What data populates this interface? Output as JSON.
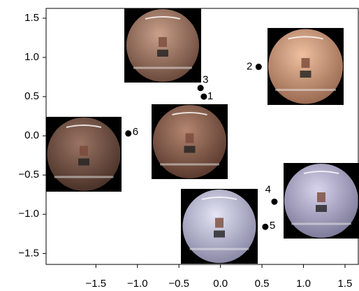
{
  "chart_data": {
    "type": "scatter",
    "series": [
      {
        "color": "#000000",
        "x": [
          -0.2,
          0.46,
          -0.24,
          0.65,
          0.54,
          -1.11
        ],
        "values": [
          0.5,
          0.88,
          0.61,
          -0.84,
          -1.16,
          0.03
        ],
        "labels": [
          "1",
          "2",
          "3",
          "4",
          "5",
          "6"
        ]
      }
    ],
    "xlim": [
      -2.1,
      1.66
    ],
    "ylim": [
      -1.64,
      1.625
    ],
    "xticks": [
      {
        "value": -1.5,
        "label": "−1.5"
      },
      {
        "value": -1.0,
        "label": "−1.0"
      },
      {
        "value": -0.5,
        "label": "−0.5"
      },
      {
        "value": 0.0,
        "label": "0.0"
      },
      0.5,
      {
        "value": 1.0,
        "label": "1.0"
      },
      1.5
    ],
    "yticks": [
      {
        "value": -1.5,
        "label": "−1.5"
      },
      {
        "value": -1.0,
        "label": "−1.0"
      },
      {
        "value": -0.5,
        "label": "−0.5"
      },
      {
        "value": 0.0,
        "label": "0.0"
      },
      0.5,
      {
        "value": 1.0,
        "label": "1.0"
      },
      1.5
    ],
    "grid": false
  }
}
